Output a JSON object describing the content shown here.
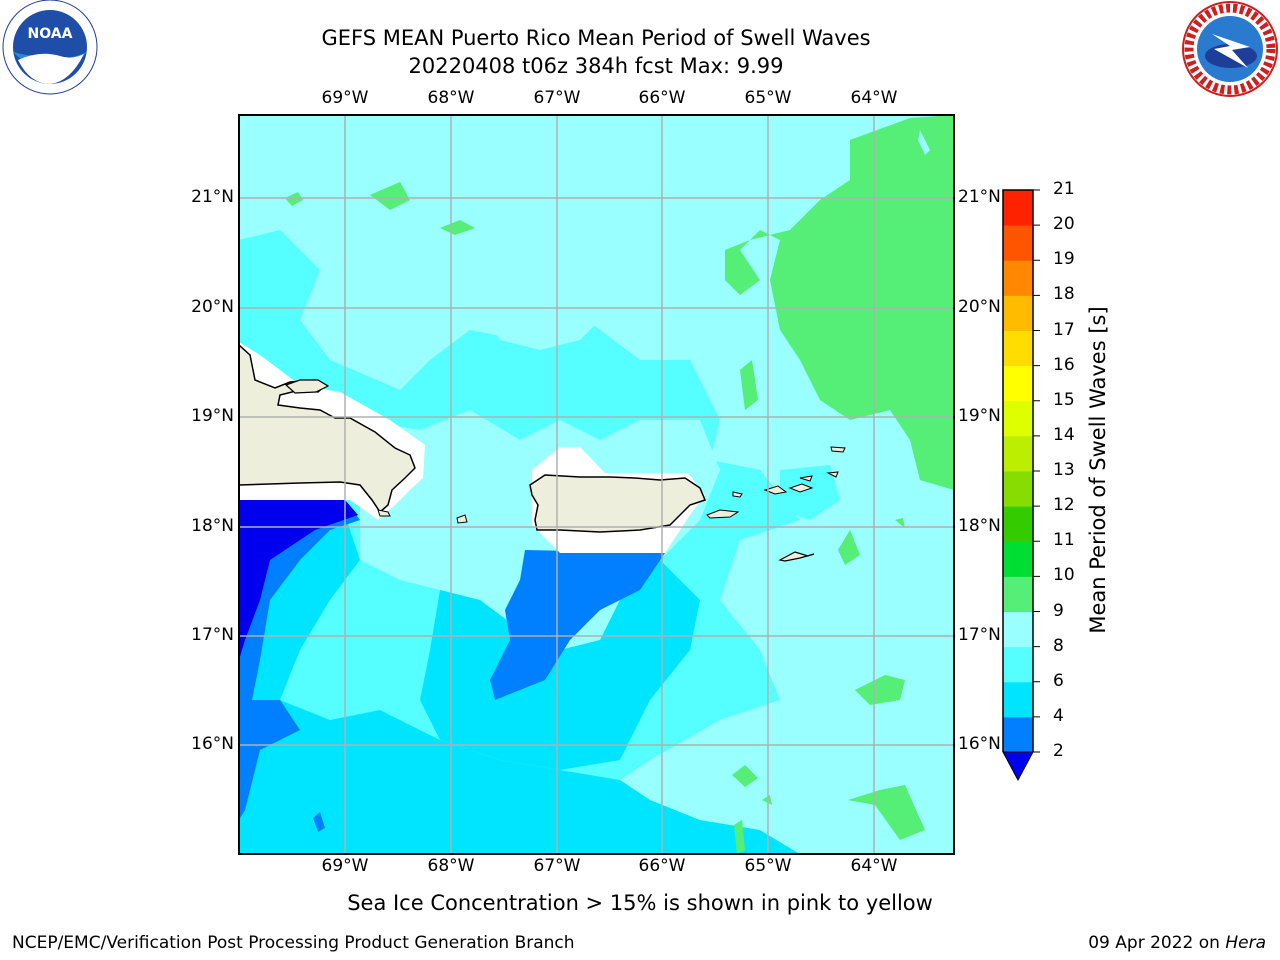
{
  "title": {
    "line1": "GEFS MEAN Puerto Rico Mean Period of Swell Waves",
    "line2": "20220408 t06z 384h fcst   Max: 9.99"
  },
  "map": {
    "lon_labels": [
      "69°W",
      "68°W",
      "67°W",
      "66°W",
      "65°W",
      "64°W"
    ],
    "lat_labels": [
      "21°N",
      "20°N",
      "19°N",
      "18°N",
      "17°N",
      "16°N"
    ],
    "extent": {
      "lon_min": -70.0,
      "lon_max": -63.25,
      "lat_min": 15.0,
      "lat_max": 21.75
    },
    "land_color": "#eeeedc",
    "grid": true
  },
  "colorbar": {
    "label": "Mean Period of Swell Waves [s]",
    "ticks": [
      "2",
      "4",
      "6",
      "8",
      "9",
      "10",
      "11",
      "12",
      "13",
      "14",
      "15",
      "16",
      "17",
      "18",
      "19",
      "20",
      "21"
    ],
    "levels": [
      2,
      4,
      6,
      8,
      9,
      10,
      11,
      12,
      13,
      14,
      15,
      16,
      17,
      18,
      19,
      20,
      21
    ],
    "colors": [
      "#0080ff",
      "#00e5ff",
      "#55ffff",
      "#99ffff",
      "#55ee77",
      "#00dd33",
      "#33cc00",
      "#88dd00",
      "#bbee00",
      "#ddff00",
      "#ffff00",
      "#ffdd00",
      "#ffbb00",
      "#ff8800",
      "#ff5500",
      "#ff2200"
    ],
    "extend_min_color": "#0000ee"
  },
  "note": "Sea Ice Concentration > 15% is shown in pink to yellow",
  "footer": {
    "left": "NCEP/EMC/Verification Post Processing Product Generation Branch",
    "date": "09 Apr 2022 on",
    "host": "Hera"
  },
  "logos": {
    "noaa": "NOAA",
    "nws": "NATIONAL WEATHER SERVICE"
  }
}
